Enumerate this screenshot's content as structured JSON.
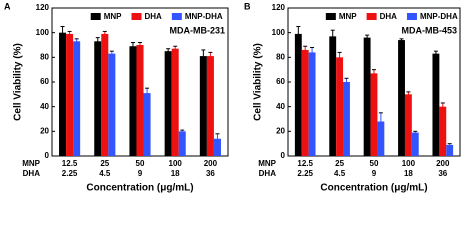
{
  "chart_data": [
    {
      "type": "bar",
      "panel_label": "A",
      "title": "MDA-MB-231",
      "y_label": "Cell Viability (%)",
      "x_label": "Concentration (μg/mL)",
      "ylim": [
        0,
        120
      ],
      "yticks": [
        0,
        20,
        40,
        60,
        80,
        100,
        120
      ],
      "legend": "top",
      "category_rows": [
        {
          "name": "MNP",
          "labels": [
            "12.5",
            "25",
            "50",
            "100",
            "200"
          ]
        },
        {
          "name": "DHA",
          "labels": [
            "2.25",
            "4.5",
            "9",
            "18",
            "36"
          ]
        }
      ],
      "series": [
        {
          "name": "MNP",
          "color": "#000000",
          "values": [
            100,
            93,
            89,
            85,
            81
          ],
          "errors": [
            5,
            3,
            3,
            2,
            5
          ]
        },
        {
          "name": "DHA",
          "color": "#ee1111",
          "values": [
            99,
            99,
            90,
            87,
            81
          ],
          "errors": [
            2,
            2,
            2,
            2,
            3
          ]
        },
        {
          "name": "MNP-DHA",
          "color": "#3355ff",
          "values": [
            93,
            83,
            51,
            20,
            14
          ],
          "errors": [
            2,
            2,
            4,
            1,
            4
          ]
        }
      ]
    },
    {
      "type": "bar",
      "panel_label": "B",
      "title": "MDA-MB-453",
      "y_label": "Cell Viability (%)",
      "x_label": "Concentration (μg/mL)",
      "ylim": [
        0,
        120
      ],
      "yticks": [
        0,
        20,
        40,
        60,
        80,
        100,
        120
      ],
      "legend": "top",
      "category_rows": [
        {
          "name": "MNP",
          "labels": [
            "12.5",
            "25",
            "50",
            "100",
            "200"
          ]
        },
        {
          "name": "DHA",
          "labels": [
            "2.25",
            "4.5",
            "9",
            "18",
            "36"
          ]
        }
      ],
      "series": [
        {
          "name": "MNP",
          "color": "#000000",
          "values": [
            99,
            97,
            96,
            94,
            83
          ],
          "errors": [
            6,
            5,
            2,
            1,
            2
          ]
        },
        {
          "name": "DHA",
          "color": "#ee1111",
          "values": [
            86,
            80,
            67,
            50,
            40
          ],
          "errors": [
            3,
            4,
            3,
            2,
            3
          ]
        },
        {
          "name": "MNP-DHA",
          "color": "#3355ff",
          "values": [
            84,
            60,
            28,
            19,
            9
          ],
          "errors": [
            4,
            3,
            7,
            1,
            1
          ]
        }
      ]
    }
  ]
}
